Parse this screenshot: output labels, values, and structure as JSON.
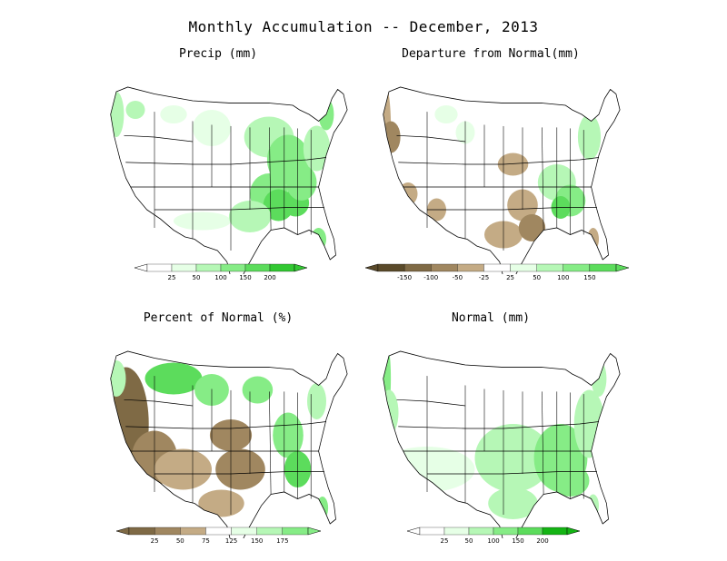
{
  "title": "Monthly Accumulation -- December, 2013",
  "colors": {
    "green": [
      "#e6ffe6",
      "#b6f7b6",
      "#86ec86",
      "#5cdc5c",
      "#32c832",
      "#14b414"
    ],
    "brown": [
      "#5a4a2a",
      "#7f6a45",
      "#a08760",
      "#c4ab85",
      "#e1cfb0"
    ],
    "outline": "#000000"
  },
  "panels": [
    {
      "id": "precip",
      "title": "Precip (mm)",
      "colorbar": {
        "type": "positive",
        "ticks": [
          "25",
          "50",
          "100",
          "150",
          "200"
        ]
      }
    },
    {
      "id": "departure",
      "title": "Departure from Normal(mm)",
      "colorbar": {
        "type": "diverging",
        "ticks": [
          "-150",
          "-100",
          "-50",
          "-25",
          "25",
          "50",
          "100",
          "150"
        ]
      }
    },
    {
      "id": "percent",
      "title": "Percent of Normal (%)",
      "colorbar": {
        "type": "diverging-percent",
        "ticks": [
          "25",
          "50",
          "75",
          "125",
          "150",
          "175"
        ]
      }
    },
    {
      "id": "normal",
      "title": "Normal (mm)",
      "colorbar": {
        "type": "positive",
        "ticks": [
          "25",
          "50",
          "100",
          "150",
          "200"
        ]
      }
    }
  ]
}
